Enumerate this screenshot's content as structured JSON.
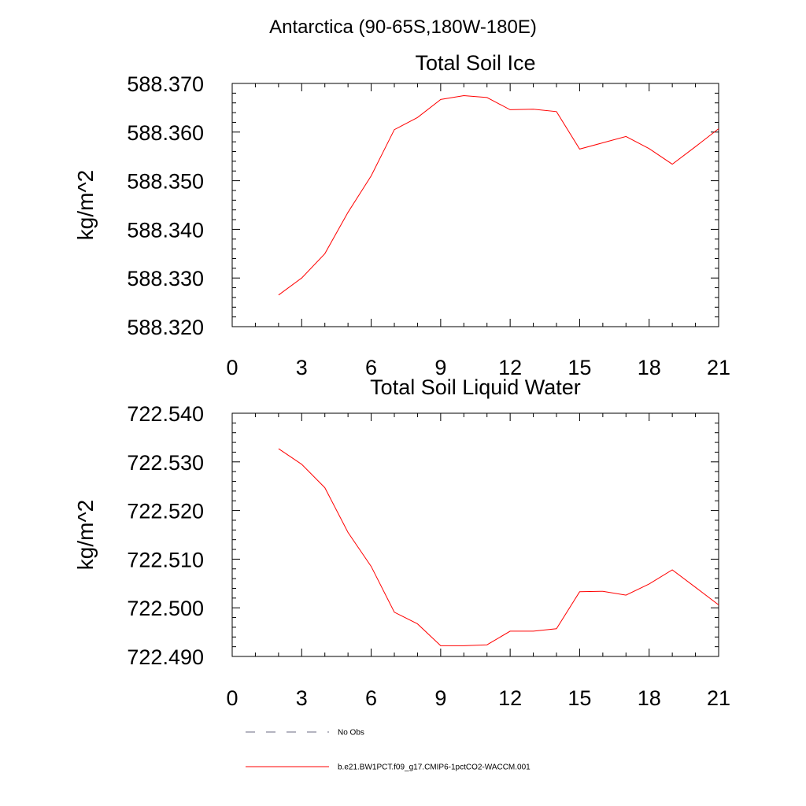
{
  "figure_title": "Antarctica (90-65S,180W-180E)",
  "chart_data": [
    {
      "type": "line",
      "title": "Total Soil Ice",
      "xlabel": "",
      "ylabel": "kg/m^2",
      "xlim": [
        0,
        21
      ],
      "ylim": [
        588.32,
        588.37
      ],
      "xticks": [
        "0",
        "3",
        "6",
        "9",
        "12",
        "15",
        "18",
        "21"
      ],
      "yticks": [
        "588.320",
        "588.330",
        "588.340",
        "588.350",
        "588.360",
        "588.370"
      ],
      "grid": false,
      "series": [
        {
          "name": "b.e21.BW1PCT.f09_g17.CMIP6-1pctCO2-WACCM.001",
          "color": "#ff0000",
          "x": [
            2,
            3,
            4,
            5,
            6,
            7,
            8,
            9,
            10,
            11,
            12,
            13,
            14,
            15,
            16,
            17,
            18,
            19,
            20,
            21
          ],
          "y": [
            588.3265,
            588.33,
            588.335,
            588.3435,
            588.351,
            588.3605,
            588.363,
            588.3667,
            588.3675,
            588.3671,
            588.3646,
            588.3647,
            588.3642,
            588.3565,
            588.3578,
            588.3591,
            588.3566,
            588.3534,
            588.357,
            588.3607
          ]
        }
      ]
    },
    {
      "type": "line",
      "title": "Total Soil Liquid Water",
      "xlabel": "",
      "ylabel": "kg/m^2",
      "xlim": [
        0,
        21
      ],
      "ylim": [
        722.49,
        722.54
      ],
      "xticks": [
        "0",
        "3",
        "6",
        "9",
        "12",
        "15",
        "18",
        "21"
      ],
      "yticks": [
        "722.490",
        "722.500",
        "722.510",
        "722.520",
        "722.530",
        "722.540"
      ],
      "grid": false,
      "series": [
        {
          "name": "b.e21.BW1PCT.f09_g17.CMIP6-1pctCO2-WACCM.001",
          "color": "#ff0000",
          "x": [
            2,
            3,
            4,
            5,
            6,
            7,
            8,
            9,
            10,
            11,
            12,
            13,
            14,
            15,
            16,
            17,
            18,
            19,
            20,
            21
          ],
          "y": [
            722.5327,
            722.5295,
            722.5247,
            722.5155,
            722.5085,
            722.4991,
            722.4967,
            722.4922,
            722.4922,
            722.4924,
            722.4952,
            722.4952,
            722.4957,
            722.5033,
            722.5034,
            722.5026,
            722.5049,
            722.5078,
            722.5042,
            722.5006
          ]
        }
      ]
    }
  ],
  "legend": {
    "placement": "bottom",
    "items": [
      {
        "label": "No Obs",
        "style": "dashed",
        "color": "#6a6a80"
      },
      {
        "label": "b.e21.BW1PCT.f09_g17.CMIP6-1pctCO2-WACCM.001",
        "style": "solid",
        "color": "#ff0000"
      }
    ]
  }
}
